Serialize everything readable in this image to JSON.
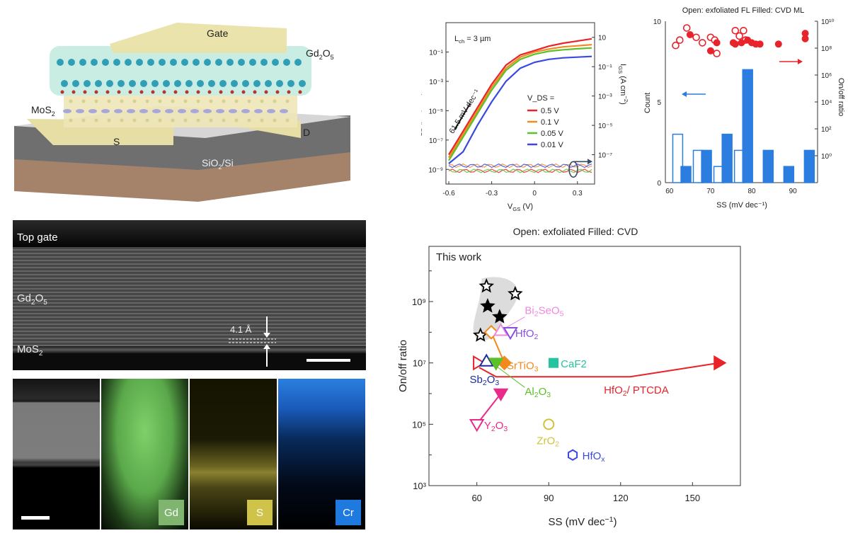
{
  "schematic": {
    "labels": {
      "gate": "Gate",
      "dielectric": "Gd",
      "dielectric_sub1": "2",
      "dielectric_o": "O",
      "dielectric_sub2": "5",
      "channel": "MoS",
      "channel_sub": "2",
      "source": "S",
      "drain": "D",
      "substrate": "SiO",
      "substrate_sub": "2",
      "substrate_rest": "/Si"
    }
  },
  "stem": {
    "top_gate": "Top gate",
    "gd_label": "Gd",
    "gd_sub1": "2",
    "gd_o": "O",
    "gd_sub2": "5",
    "mos_label": "MoS",
    "mos_sub": "2",
    "gap": "4.1 Å"
  },
  "eds": {
    "tags": [
      {
        "label": "Gd",
        "color": "#7fb56e"
      },
      {
        "label": "S",
        "color": "#cfc34a"
      },
      {
        "label": "Cr",
        "color": "#1f7ae0"
      }
    ]
  },
  "chart_data": [
    {
      "type": "line",
      "title": "",
      "annotation": "L_ch = 3 µm",
      "slope_annotation": "61.5 mV dec⁻¹",
      "xlabel": "V_GS (V)",
      "ylabel": "I_DS (µA µm⁻¹)",
      "y2label": "I_GS (A cm⁻²)",
      "xlim": [
        -0.62,
        0.42
      ],
      "ylim_log10": [
        -10,
        1
      ],
      "y2lim_log10": [
        -9,
        2
      ],
      "x_ticks": [
        "-0.6",
        "-0.3",
        "0",
        "0.3"
      ],
      "y_ticks": [
        "10⁻¹",
        "10⁻³",
        "10⁻⁵",
        "10⁻⁷",
        "10⁻⁹"
      ],
      "y2_ticks": [
        "10",
        "10⁻¹",
        "10⁻³",
        "10⁻⁵",
        "10⁻⁷"
      ],
      "legend_title": "V_DS =",
      "legend_position": "center-right",
      "x": [
        -0.6,
        -0.5,
        -0.4,
        -0.3,
        -0.2,
        -0.1,
        0.0,
        0.1,
        0.2,
        0.3,
        0.4
      ],
      "series": [
        {
          "name": "0.5 V",
          "color": "#e8232a",
          "log10_values": [
            -8.0,
            -6.4,
            -4.8,
            -3.2,
            -1.9,
            -1.2,
            -0.9,
            -0.6,
            -0.4,
            -0.25,
            -0.1
          ]
        },
        {
          "name": "0.1 V",
          "color": "#f28a1e",
          "log10_values": [
            -8.2,
            -6.6,
            -5.0,
            -3.4,
            -2.1,
            -1.35,
            -1.0,
            -0.8,
            -0.65,
            -0.58,
            -0.5
          ]
        },
        {
          "name": "0.05 V",
          "color": "#5cc02a",
          "log10_values": [
            -8.4,
            -6.8,
            -5.2,
            -3.6,
            -2.25,
            -1.5,
            -1.15,
            -0.95,
            -0.85,
            -0.78,
            -0.72
          ]
        },
        {
          "name": "0.01 V",
          "color": "#3a49e0",
          "log10_values": [
            -8.6,
            -7.8,
            -6.0,
            -4.4,
            -3.0,
            -2.1,
            -1.7,
            -1.5,
            -1.4,
            -1.35,
            -1.3
          ]
        }
      ],
      "gate_leakage_log10_IDS_equiv": -9.0
    },
    {
      "type": "bar",
      "title": "Open: exfoliated FL  Filled: CVD ML",
      "xlabel": "SS (mV dec⁻¹)",
      "ylabel": "Count",
      "y2label": "On/off ratio",
      "xlim": [
        59,
        96
      ],
      "ylim": [
        0,
        10
      ],
      "y2lim_log10": [
        -2,
        10
      ],
      "x_ticks": [
        "60",
        "70",
        "80",
        "90"
      ],
      "y_ticks": [
        "0",
        "5",
        "10"
      ],
      "y2_ticks": [
        "10⁰",
        "10²",
        "10⁴",
        "10⁶",
        "10⁸",
        "10¹⁰"
      ],
      "series": [
        {
          "name": "exfoliated FL",
          "style": "open",
          "color": "#2b7de0",
          "bins": [
            62,
            67,
            72,
            77
          ],
          "values": [
            3,
            2,
            1,
            2
          ]
        },
        {
          "name": "CVD ML",
          "style": "filled",
          "color": "#2b7de0",
          "bins": [
            64,
            69,
            74,
            79,
            84,
            89,
            94
          ],
          "values": [
            1,
            2,
            3,
            7,
            2,
            1,
            2
          ]
        }
      ],
      "scatter": {
        "color": "#e8232a",
        "open": [
          [
            61.5,
            8.2
          ],
          [
            62.5,
            8.6
          ],
          [
            64.2,
            9.5
          ],
          [
            66.5,
            8.8
          ],
          [
            68,
            8.4
          ],
          [
            70,
            8.8
          ],
          [
            71,
            8.6
          ],
          [
            71.5,
            7.6
          ],
          [
            76,
            9.3
          ],
          [
            77,
            8.9
          ],
          [
            78,
            9.3
          ],
          [
            78.5,
            8.6
          ]
        ],
        "filled": [
          [
            65,
            9.0
          ],
          [
            70,
            7.8
          ],
          [
            71.5,
            8.4
          ],
          [
            75.5,
            8.4
          ],
          [
            76,
            8.3
          ],
          [
            77.5,
            8.4
          ],
          [
            79,
            8.6
          ],
          [
            80,
            8.4
          ],
          [
            81,
            8.3
          ],
          [
            82,
            8.3
          ],
          [
            86.5,
            8.3
          ],
          [
            93,
            9.1
          ],
          [
            93,
            8.7
          ]
        ]
      },
      "arrows": {
        "left": "Count axis",
        "right": "On/off ratio axis"
      }
    },
    {
      "type": "scatter",
      "title": "Open: exfoliated   Filled: CVD",
      "xlabel": "SS (mV dec⁻¹)",
      "ylabel": "On/off ratio",
      "xlim": [
        40,
        170
      ],
      "ylim_log10": [
        3,
        10.8
      ],
      "x_ticks": [
        "60",
        "90",
        "120",
        "150"
      ],
      "y_ticks": [
        "10³",
        "10⁵",
        "10⁷",
        "10⁹"
      ],
      "highlight_label": "This work",
      "points": [
        {
          "name": "This work",
          "marker": "star-open",
          "color": "#000000",
          "x": 64,
          "log10_y": 9.5
        },
        {
          "name": "This work",
          "marker": "star-open",
          "color": "#000000",
          "x": 76,
          "log10_y": 9.25
        },
        {
          "name": "This work",
          "marker": "star-filled",
          "color": "#000000",
          "x": 64.5,
          "log10_y": 8.85
        },
        {
          "name": "This work",
          "marker": "star-filled",
          "color": "#000000",
          "x": 69.5,
          "log10_y": 8.5
        },
        {
          "name": "This work",
          "marker": "star-open",
          "color": "#000000",
          "x": 61.5,
          "log10_y": 7.9
        },
        {
          "name": "SrTiO3",
          "marker": "diamond-open",
          "color": "#f28a1e",
          "x": 66,
          "log10_y": 8.0
        },
        {
          "name": "SrTiO3",
          "marker": "diamond-filled",
          "color": "#f28a1e",
          "x": 71.5,
          "log10_y": 7.0
        },
        {
          "name": "Bi2SeO5",
          "marker": "triangle-up-open",
          "color": "#ee88e0",
          "x": 70,
          "log10_y": 8.05
        },
        {
          "name": "HfO2",
          "marker": "triangle-down-open",
          "color": "#8a4fe0",
          "x": 74,
          "log10_y": 8.0
        },
        {
          "name": "HfO2/ PTCDA",
          "marker": "triangle-right-open",
          "color": "#e8232a",
          "x": 60.5,
          "log10_y": 7.0
        },
        {
          "name": "HfO2/ PTCDA",
          "marker": "triangle-right-filled",
          "color": "#e8232a",
          "x": 161,
          "log10_y": 7.0
        },
        {
          "name": "Sb2O3",
          "marker": "triangle-up-open",
          "color": "#1e2a9c",
          "x": 64,
          "log10_y": 7.05
        },
        {
          "name": "Al2O3",
          "marker": "triangle-down-filled",
          "color": "#5cc02a",
          "x": 68,
          "log10_y": 7.0
        },
        {
          "name": "CaF2",
          "marker": "square-filled",
          "color": "#24c4a0",
          "x": 92,
          "log10_y": 7.0
        },
        {
          "name": "Y2O3",
          "marker": "triangle-down-open",
          "color": "#ea2a8a",
          "x": 60,
          "log10_y": 5.0
        },
        {
          "name": "Y2O3",
          "marker": "triangle-down-filled",
          "color": "#ea2a8a",
          "x": 70,
          "log10_y": 6.0
        },
        {
          "name": "ZrO2",
          "marker": "circle-open",
          "color": "#cfc33a",
          "x": 90,
          "log10_y": 5.0
        },
        {
          "name": "HfOx",
          "marker": "hexagon-open",
          "color": "#3a49e0",
          "x": 100,
          "log10_y": 4.0
        }
      ],
      "paths": [
        {
          "name": "HfO2/ PTCDA",
          "color": "#e8232a",
          "points": [
            [
              61,
              6.85
            ],
            [
              68,
              6.55
            ],
            [
              124,
              6.55
            ],
            [
              161,
              7.0
            ]
          ]
        },
        {
          "name": "SrTiO3",
          "color": "#f28a1e",
          "points": [
            [
              66,
              8.0
            ],
            [
              71.5,
              7.0
            ]
          ]
        },
        {
          "name": "Y2O3",
          "color": "#ea2a8a",
          "points": [
            [
              60,
              5.0
            ],
            [
              70,
              6.0
            ]
          ]
        }
      ],
      "labels": [
        {
          "text": "Bi",
          "sub": "2",
          "rest": "SeO",
          "sub2": "5",
          "color": "#ee88e0"
        },
        {
          "text": "HfO",
          "sub": "2",
          "color": "#8a4fe0"
        },
        {
          "text": "SrTiO",
          "sub": "3",
          "color": "#f28a1e"
        },
        {
          "text": "CaF2",
          "color": "#24c4a0"
        },
        {
          "text": "Sb",
          "sub": "2",
          "rest": "O",
          "sub2": "3",
          "color": "#1e2a9c"
        },
        {
          "text": "Al",
          "sub": "2",
          "rest": "O",
          "sub2": "3",
          "color": "#5cc02a"
        },
        {
          "text": "HfO",
          "sub": "2",
          "rest": "/ PTCDA",
          "color": "#e8232a"
        },
        {
          "text": "Y",
          "sub": "2",
          "rest": "O",
          "sub2": "3",
          "color": "#ea2a8a"
        },
        {
          "text": "ZrO",
          "sub": "2",
          "color": "#cfc33a"
        },
        {
          "text": "HfO",
          "sub": "x",
          "color": "#3a49e0"
        }
      ]
    }
  ]
}
